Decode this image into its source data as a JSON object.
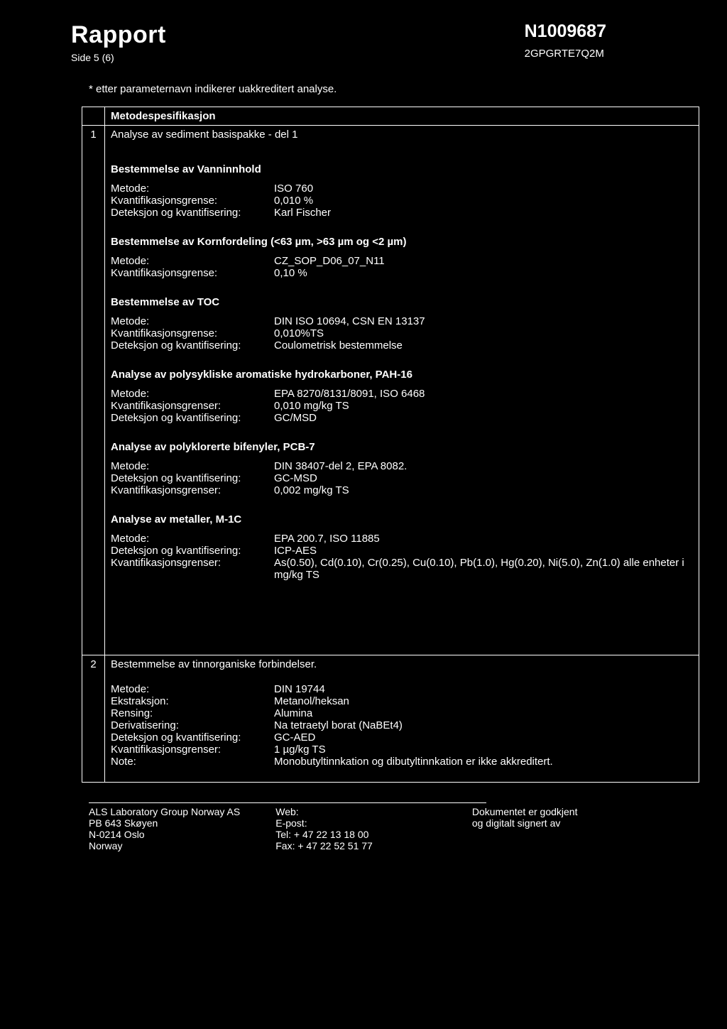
{
  "header": {
    "title": "Rapport",
    "page_label": "Side 5 (6)",
    "report_number": "N1009687",
    "code": "2GPGRTE7Q2M"
  },
  "accreditation_note": "* etter parameternavn indikerer uakkreditert analyse.",
  "spec_header": "Metodespesifikasjon",
  "method1": {
    "num": "1",
    "intro": "Analyse av sediment basispakke - del 1",
    "sections": [
      {
        "title": "Bestemmelse av Vanninnhold",
        "rows": [
          {
            "label": "Metode:",
            "value": "ISO 760"
          },
          {
            "label": "Kvantifikasjonsgrense:",
            "value": "0,010 %"
          },
          {
            "label": "Deteksjon og kvantifisering:",
            "value": "Karl Fischer"
          }
        ]
      },
      {
        "title": "Bestemmelse av Kornfordeling (<63 µm, >63 µm og <2 µm)",
        "rows": [
          {
            "label": "Metode:",
            "value": "CZ_SOP_D06_07_N11"
          },
          {
            "label": "Kvantifikasjonsgrense:",
            "value": "0,10 %"
          }
        ]
      },
      {
        "title": "Bestemmelse av TOC",
        "rows": [
          {
            "label": "Metode:",
            "value": "DIN ISO 10694, CSN EN 13137"
          },
          {
            "label": "Kvantifikasjonsgrense:",
            "value": "0,010%TS"
          },
          {
            "label": "Deteksjon og kvantifisering:",
            "value": "Coulometrisk bestemmelse"
          }
        ]
      },
      {
        "title": "Analyse av polysykliske aromatiske hydrokarboner, PAH-16",
        "rows": [
          {
            "label": "Metode:",
            "value": "EPA 8270/8131/8091, ISO 6468"
          },
          {
            "label": "Kvantifikasjonsgrenser:",
            "value": "0,010 mg/kg TS"
          },
          {
            "label": "Deteksjon og kvantifisering:",
            "value": "GC/MSD"
          }
        ]
      },
      {
        "title": "Analyse av polyklorerte bifenyler, PCB-7",
        "rows": [
          {
            "label": "Metode:",
            "value": "DIN 38407-del 2, EPA 8082."
          },
          {
            "label": "Deteksjon og kvantifisering:",
            "value": "GC-MSD"
          },
          {
            "label": "Kvantifikasjonsgrenser:",
            "value": "0,002 mg/kg TS"
          }
        ]
      },
      {
        "title": "Analyse av metaller, M-1C",
        "rows": [
          {
            "label": "Metode:",
            "value": "EPA 200.7, ISO 11885"
          },
          {
            "label": "Deteksjon og kvantifisering:",
            "value": "ICP-AES"
          },
          {
            "label": "Kvantifikasjonsgrenser:",
            "value": "As(0.50), Cd(0.10), Cr(0.25), Cu(0.10), Pb(1.0), Hg(0.20), Ni(5.0), Zn(1.0) alle enheter i mg/kg TS"
          }
        ]
      }
    ]
  },
  "method2": {
    "num": "2",
    "intro": "Bestemmelse av tinnorganiske forbindelser.",
    "rows": [
      {
        "label": "Metode:",
        "value": "DIN 19744"
      },
      {
        "label": "Ekstraksjon:",
        "value": "Metanol/heksan"
      },
      {
        "label": "Rensing:",
        "value": "Alumina"
      },
      {
        "label": "Derivatisering:",
        "value": "Na tetraetyl borat (NaBEt4)"
      },
      {
        "label": "Deteksjon og kvantifisering:",
        "value": "GC-AED"
      },
      {
        "label": "Kvantifikasjonsgrenser:",
        "value": "1 µg/kg TS"
      },
      {
        "label": "Note:",
        "value": "Monobutyltinnkation og dibutyltinnkation er ikke akkreditert."
      }
    ]
  },
  "footer": {
    "col1": [
      "ALS Laboratory Group Norway AS",
      "PB 643 Skøyen",
      "N-0214 Oslo",
      "Norway"
    ],
    "col2": [
      "Web:",
      "E-post:",
      "Tel: + 47 22 13 18 00",
      "Fax: + 47 22 52 51 77"
    ],
    "col3": [
      "Dokumentet er godkjent",
      "og digitalt signert av"
    ]
  }
}
